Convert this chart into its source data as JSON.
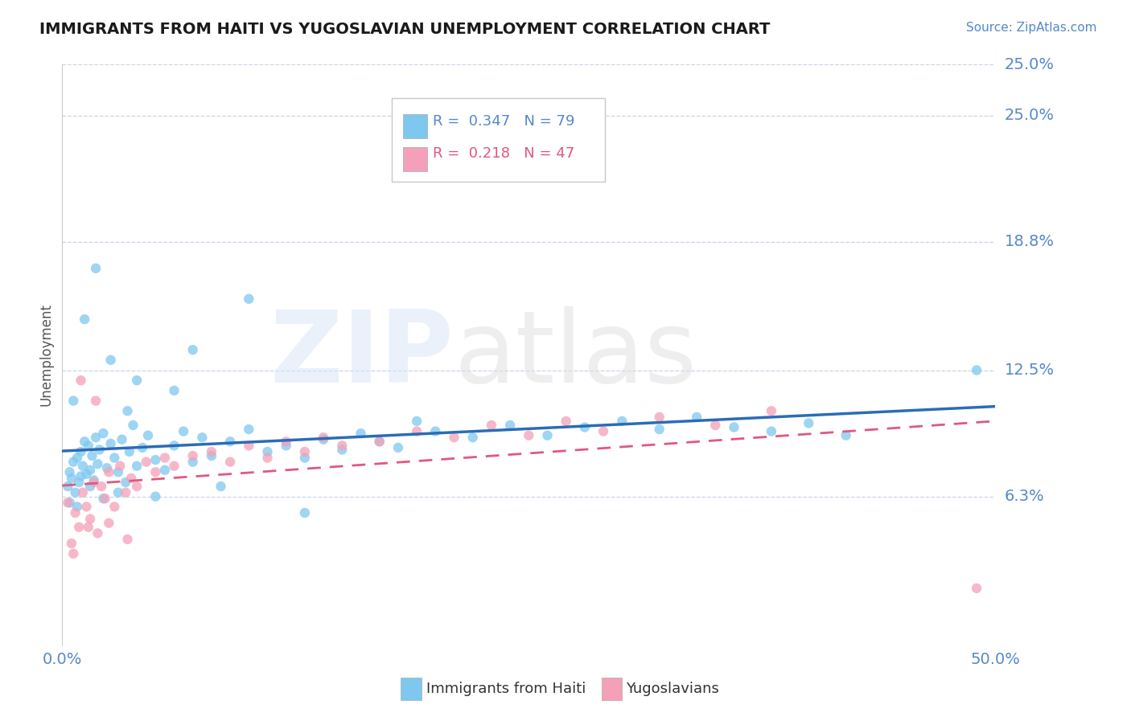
{
  "title": "IMMIGRANTS FROM HAITI VS YUGOSLAVIAN UNEMPLOYMENT CORRELATION CHART",
  "source": "Source: ZipAtlas.com",
  "ylabel": "Unemployment",
  "x_min": 0.0,
  "x_max": 0.5,
  "y_min": -0.01,
  "y_max": 0.275,
  "y_ticks": [
    0.063,
    0.125,
    0.188,
    0.25
  ],
  "y_tick_labels": [
    "6.3%",
    "12.5%",
    "18.8%",
    "25.0%"
  ],
  "haiti_R": 0.347,
  "haiti_N": 79,
  "yugo_R": 0.218,
  "yugo_N": 47,
  "haiti_color": "#7ec8f0",
  "yugo_color": "#f4a0b8",
  "haiti_line_color": "#2b6cb8",
  "yugo_line_color": "#e05880",
  "background_color": "#ffffff",
  "grid_color": "#c8d4e8",
  "title_color": "#1a1a1a",
  "label_color": "#5588cc",
  "haiti_scatter_x": [
    0.003,
    0.004,
    0.005,
    0.006,
    0.007,
    0.008,
    0.009,
    0.01,
    0.011,
    0.012,
    0.013,
    0.014,
    0.015,
    0.016,
    0.017,
    0.018,
    0.019,
    0.02,
    0.022,
    0.024,
    0.026,
    0.028,
    0.03,
    0.032,
    0.034,
    0.036,
    0.038,
    0.04,
    0.043,
    0.046,
    0.05,
    0.055,
    0.06,
    0.065,
    0.07,
    0.075,
    0.08,
    0.09,
    0.1,
    0.11,
    0.12,
    0.13,
    0.14,
    0.15,
    0.16,
    0.17,
    0.18,
    0.19,
    0.2,
    0.22,
    0.24,
    0.26,
    0.28,
    0.3,
    0.32,
    0.34,
    0.36,
    0.38,
    0.4,
    0.42,
    0.004,
    0.006,
    0.008,
    0.01,
    0.012,
    0.015,
    0.018,
    0.022,
    0.026,
    0.03,
    0.035,
    0.04,
    0.05,
    0.06,
    0.07,
    0.085,
    0.1,
    0.13,
    0.49
  ],
  "haiti_scatter_y": [
    0.068,
    0.075,
    0.072,
    0.08,
    0.065,
    0.082,
    0.07,
    0.085,
    0.078,
    0.09,
    0.074,
    0.088,
    0.076,
    0.083,
    0.071,
    0.092,
    0.079,
    0.086,
    0.094,
    0.077,
    0.089,
    0.082,
    0.075,
    0.091,
    0.07,
    0.085,
    0.098,
    0.078,
    0.087,
    0.093,
    0.081,
    0.076,
    0.088,
    0.095,
    0.08,
    0.092,
    0.083,
    0.09,
    0.096,
    0.085,
    0.088,
    0.082,
    0.091,
    0.086,
    0.094,
    0.09,
    0.087,
    0.1,
    0.095,
    0.092,
    0.098,
    0.093,
    0.097,
    0.1,
    0.096,
    0.102,
    0.097,
    0.095,
    0.099,
    0.093,
    0.06,
    0.11,
    0.058,
    0.073,
    0.15,
    0.068,
    0.175,
    0.062,
    0.13,
    0.065,
    0.105,
    0.12,
    0.063,
    0.115,
    0.135,
    0.068,
    0.16,
    0.055,
    0.125
  ],
  "yugo_scatter_x": [
    0.003,
    0.005,
    0.007,
    0.009,
    0.011,
    0.013,
    0.015,
    0.017,
    0.019,
    0.021,
    0.023,
    0.025,
    0.028,
    0.031,
    0.034,
    0.037,
    0.04,
    0.045,
    0.05,
    0.055,
    0.06,
    0.07,
    0.08,
    0.09,
    0.1,
    0.11,
    0.12,
    0.13,
    0.14,
    0.15,
    0.17,
    0.19,
    0.21,
    0.23,
    0.25,
    0.27,
    0.29,
    0.32,
    0.35,
    0.38,
    0.006,
    0.01,
    0.014,
    0.018,
    0.025,
    0.035,
    0.49
  ],
  "yugo_scatter_y": [
    0.06,
    0.04,
    0.055,
    0.048,
    0.065,
    0.058,
    0.052,
    0.07,
    0.045,
    0.068,
    0.062,
    0.075,
    0.058,
    0.078,
    0.065,
    0.072,
    0.068,
    0.08,
    0.075,
    0.082,
    0.078,
    0.083,
    0.085,
    0.08,
    0.088,
    0.082,
    0.09,
    0.085,
    0.092,
    0.088,
    0.09,
    0.095,
    0.092,
    0.098,
    0.093,
    0.1,
    0.095,
    0.102,
    0.098,
    0.105,
    0.035,
    0.12,
    0.048,
    0.11,
    0.05,
    0.042,
    0.018
  ]
}
